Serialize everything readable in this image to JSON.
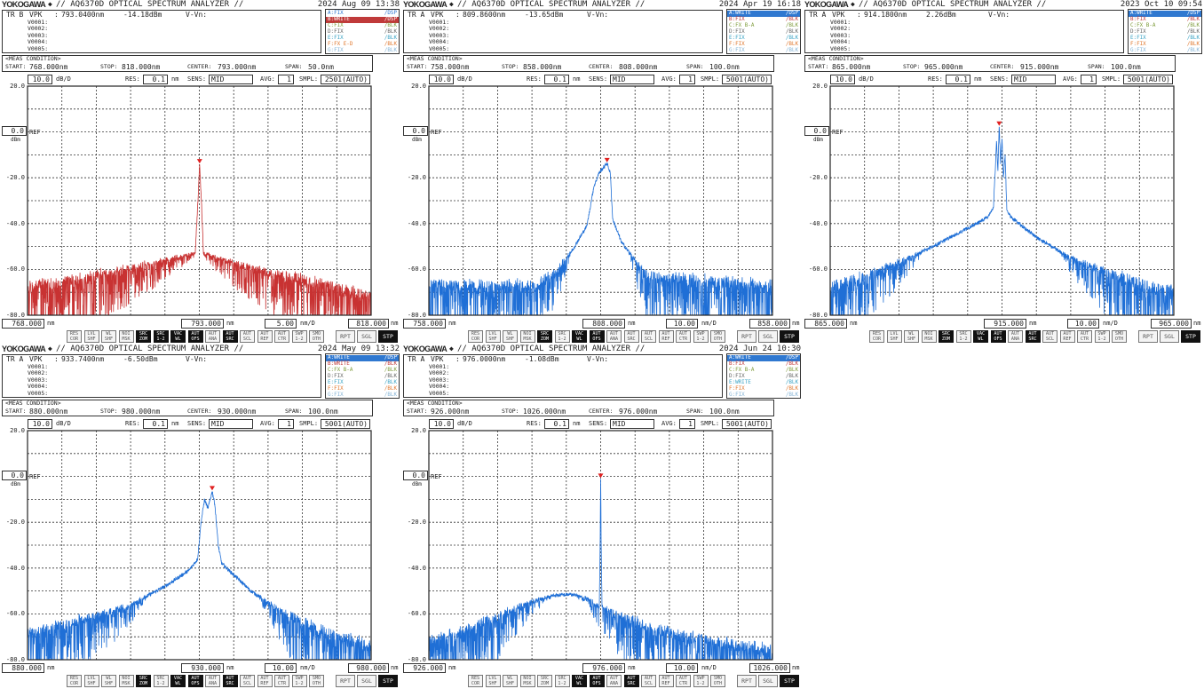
{
  "common": {
    "brand": "YOKOGAWA",
    "brand_symbol": "◆",
    "title": "// AQ6370D OPTICAL SPECTRUM ANALYZER //",
    "marker_rows": [
      "V0001:",
      "V0002:",
      "V0003:",
      "V0004:",
      "V0005:"
    ],
    "marker_label": "VPK",
    "delta_label": "V-Vn:",
    "meas_title": "<MEAS CONDITION>",
    "start_label": "START:",
    "stop_label": "STOP:",
    "center_label": "CENTER:",
    "span_label": "SPAN:",
    "scale_unit": "dB/D",
    "res_label": "RES:",
    "res_unit": "nm",
    "sens_label": "SENS:",
    "avg_label": "AVG:",
    "smpl_label": "SMPL:",
    "ref_label": "REF",
    "ref_value": "0.0",
    "ref_unit": "dBm",
    "y_tick_labels": [
      "20.0",
      "-20.0",
      "-40.0",
      "-60.0",
      "-80.0"
    ],
    "nm_unit": "nm",
    "div_unit": "nm/D",
    "buttons": [
      [
        "RES",
        "COR"
      ],
      [
        "LVL",
        "SHF"
      ],
      [
        "WL",
        "SHF"
      ],
      [
        "NOI",
        "MSK"
      ],
      [
        "SRC",
        "ZOM"
      ],
      [
        "SRC",
        "1-2"
      ],
      [
        "VAC",
        "WL"
      ],
      [
        "AUT",
        "OFS"
      ],
      [
        "AUT",
        "ANA"
      ],
      [
        "AUT",
        "SRC"
      ],
      [
        "AUT",
        "SCL"
      ],
      [
        "AUT",
        "REF"
      ],
      [
        "AUT",
        "CTR"
      ],
      [
        "SWP",
        "1-2"
      ],
      [
        "SMO",
        "OTH"
      ]
    ],
    "mode_buttons": [
      "RPT",
      "SGL",
      "STP"
    ],
    "active_mode": "STP",
    "trace_colors": {
      "A": "#2f78d0",
      "B": "#c03a3a",
      "C": "#7f9c3c",
      "D": "#666666",
      "E": "#3aa3c4",
      "F": "#e0782e",
      "G": "#86b4d6"
    }
  },
  "panels": [
    {
      "date": "2024 Aug 09 13:38",
      "marker_trace": "TR B",
      "marker_wl": "793.0400nm",
      "marker_level": "-14.18dBm",
      "traces": [
        [
          "A",
          "A:FIX",
          "/DSP",
          false
        ],
        [
          "B",
          "B:WRITE",
          "/DSP",
          true
        ],
        [
          "C",
          "C:FIX",
          "/BLK",
          false
        ],
        [
          "D",
          "D:FIX",
          "/BLK",
          false
        ],
        [
          "E",
          "E:FIX",
          "/BLK",
          false
        ],
        [
          "F",
          "F:FX E-D",
          "/BLK",
          false
        ],
        [
          "G",
          "G:FIX",
          "/BLK",
          false
        ]
      ],
      "start": "768.000nm",
      "stop": "818.000nm",
      "center": "793.000nm",
      "span": "50.0nm",
      "scale": "10.0",
      "res": "0.1",
      "sens": "MID",
      "avg": "1",
      "smpl": "2501(AUTO)",
      "axis_start": "768.000",
      "axis_center": "793.000",
      "axis_div": "5.00",
      "axis_stop": "818.000",
      "active_buttons": [
        "SRC ZOM",
        "SRC 1-2",
        "VAC WL",
        "AUT OFS",
        "AUT SRC"
      ],
      "trace_color": "#c83232",
      "chart_data": {
        "type": "line",
        "xlim": [
          768,
          818
        ],
        "ylim": [
          -80,
          20
        ],
        "x_unit": "nm",
        "y_unit": "dBm",
        "grid": true,
        "peak": {
          "x": 793.04,
          "y": -14.18
        },
        "envelope": [
          [
            768,
            -68
          ],
          [
            776,
            -64
          ],
          [
            782,
            -60
          ],
          [
            788,
            -56
          ],
          [
            792.4,
            -53
          ],
          [
            792.8,
            -30
          ],
          [
            793.04,
            -14.18
          ],
          [
            793.3,
            -30
          ],
          [
            793.6,
            -53
          ],
          [
            798,
            -57
          ],
          [
            804,
            -62
          ],
          [
            810,
            -66
          ],
          [
            818,
            -72
          ]
        ]
      }
    },
    {
      "date": "2024 Apr 19 16:18",
      "marker_trace": "TR A",
      "marker_wl": "809.8600nm",
      "marker_level": "-13.65dBm",
      "traces": [
        [
          "A",
          "A:WRITE",
          "/DSP",
          true
        ],
        [
          "B",
          "B:FIX",
          "/BLK",
          false
        ],
        [
          "C",
          "C:FX B-A",
          "/BLK",
          false
        ],
        [
          "D",
          "D:FIX",
          "/BLK",
          false
        ],
        [
          "E",
          "E:FIX",
          "/BLK",
          false
        ],
        [
          "F",
          "F:FIX",
          "/BLK",
          false
        ],
        [
          "G",
          "G:FIX",
          "/BLK",
          false
        ]
      ],
      "start": "758.000nm",
      "stop": "858.000nm",
      "center": "808.000nm",
      "span": "100.0nm",
      "scale": "10.0",
      "res": "0.1",
      "sens": "MID",
      "avg": "1",
      "smpl": "5001(AUTO)",
      "axis_start": "758.000",
      "axis_center": "808.000",
      "axis_div": "10.00",
      "axis_stop": "858.000",
      "active_buttons": [
        "SRC ZOM",
        "VAC WL",
        "AUT OFS"
      ],
      "trace_color": "#1f6fd6",
      "chart_data": {
        "type": "line",
        "xlim": [
          758,
          858
        ],
        "ylim": [
          -80,
          20
        ],
        "x_unit": "nm",
        "y_unit": "dBm",
        "grid": true,
        "peak": {
          "x": 809.86,
          "y": -13.65
        },
        "envelope": [
          [
            758,
            -67
          ],
          [
            790,
            -67
          ],
          [
            795,
            -61
          ],
          [
            800,
            -51
          ],
          [
            804,
            -41
          ],
          [
            806,
            -24
          ],
          [
            807.5,
            -18
          ],
          [
            809.86,
            -13.65
          ],
          [
            810.8,
            -18
          ],
          [
            811.5,
            -38
          ],
          [
            814,
            -48
          ],
          [
            818,
            -56
          ],
          [
            822,
            -63
          ],
          [
            858,
            -67
          ]
        ]
      }
    },
    {
      "date": "2023 Oct 10 09:54",
      "marker_trace": "TR A",
      "marker_wl": "914.1800nm",
      "marker_level": "2.26dBm",
      "traces": [
        [
          "A",
          "A:WRITE",
          "/DSP",
          true
        ],
        [
          "B",
          "B:FIX",
          "/BLK",
          false
        ],
        [
          "C",
          "C:FX B-A",
          "/BLK",
          false
        ],
        [
          "D",
          "D:FIX",
          "/BLK",
          false
        ],
        [
          "E",
          "E:FIX",
          "/BLK",
          false
        ],
        [
          "F",
          "F:FIX",
          "/BLK",
          false
        ],
        [
          "G",
          "G:FIX",
          "/BLK",
          false
        ]
      ],
      "start": "865.000nm",
      "stop": "965.000nm",
      "center": "915.000nm",
      "span": "100.0nm",
      "scale": "10.0",
      "res": "0.1",
      "sens": "MID",
      "avg": "1",
      "smpl": "5001(AUTO)",
      "axis_start": "865.000",
      "axis_center": "915.000",
      "axis_div": "10.00",
      "axis_stop": "965.000",
      "active_buttons": [
        "SRC ZOM",
        "VAC WL",
        "AUT OFS",
        "AUT SRC"
      ],
      "trace_color": "#1f6fd6",
      "chart_data": {
        "type": "line",
        "xlim": [
          865,
          965
        ],
        "ylim": [
          -80,
          20
        ],
        "x_unit": "nm",
        "y_unit": "dBm",
        "grid": true,
        "peak": {
          "x": 914.18,
          "y": 2.26
        },
        "envelope": [
          [
            865,
            -68
          ],
          [
            875,
            -63
          ],
          [
            885,
            -57
          ],
          [
            895,
            -50
          ],
          [
            905,
            -42
          ],
          [
            911,
            -37
          ],
          [
            912.5,
            -33
          ],
          [
            913,
            -18
          ],
          [
            913.4,
            -4
          ],
          [
            913.8,
            -17
          ],
          [
            914.18,
            2.26
          ],
          [
            914.6,
            -14
          ],
          [
            915,
            -3
          ],
          [
            915.4,
            -20
          ],
          [
            915.9,
            -10
          ],
          [
            916.4,
            -34
          ],
          [
            917.5,
            -37
          ],
          [
            925,
            -46
          ],
          [
            935,
            -55
          ],
          [
            945,
            -61
          ],
          [
            955,
            -66
          ],
          [
            965,
            -70
          ]
        ]
      }
    },
    {
      "date": "2024 May 09 13:32",
      "marker_trace": "TR A",
      "marker_wl": "933.7400nm",
      "marker_level": "-6.50dBm",
      "traces": [
        [
          "A",
          "A:WRITE",
          "/DSP",
          true
        ],
        [
          "B",
          "B:WRITE",
          "/BLK",
          false
        ],
        [
          "C",
          "C:FX B-A",
          "/BLK",
          false
        ],
        [
          "D",
          "D:FIX",
          "/BLK",
          false
        ],
        [
          "E",
          "E:FIX",
          "/BLK",
          false
        ],
        [
          "F",
          "F:FIX",
          "/BLK",
          false
        ],
        [
          "G",
          "G:FIX",
          "/BLK",
          false
        ]
      ],
      "start": "880.000nm",
      "stop": "980.000nm",
      "center": "930.000nm",
      "span": "100.0nm",
      "scale": "10.0",
      "res": "0.1",
      "sens": "MID",
      "avg": "1",
      "smpl": "5001(AUTO)",
      "axis_start": "880.000",
      "axis_center": "930.000",
      "axis_div": "10.00",
      "axis_stop": "980.000",
      "active_buttons": [
        "SRC ZOM",
        "VAC WL",
        "AUT OFS",
        "AUT SRC"
      ],
      "trace_color": "#1f6fd6",
      "chart_data": {
        "type": "line",
        "xlim": [
          880,
          980
        ],
        "ylim": [
          -80,
          20
        ],
        "x_unit": "nm",
        "y_unit": "dBm",
        "grid": true,
        "peak": {
          "x": 933.74,
          "y": -6.5
        },
        "envelope": [
          [
            880,
            -69
          ],
          [
            890,
            -65
          ],
          [
            900,
            -61
          ],
          [
            910,
            -56
          ],
          [
            920,
            -48
          ],
          [
            927,
            -41
          ],
          [
            929.5,
            -36
          ],
          [
            930.5,
            -20
          ],
          [
            931.5,
            -10
          ],
          [
            932.5,
            -14
          ],
          [
            933.74,
            -6.5
          ],
          [
            934.5,
            -12
          ],
          [
            935.5,
            -30
          ],
          [
            936.5,
            -38
          ],
          [
            945,
            -50
          ],
          [
            955,
            -60
          ],
          [
            965,
            -67
          ],
          [
            980,
            -74
          ]
        ]
      }
    },
    {
      "date": "2024 Jun 24 10:30",
      "marker_trace": "TR A",
      "marker_wl": "976.0000nm",
      "marker_level": "-1.08dBm",
      "traces": [
        [
          "A",
          "A:WRITE",
          "/DSP",
          true
        ],
        [
          "B",
          "B:FIX",
          "/BLK",
          false
        ],
        [
          "C",
          "C:FX B-A",
          "/BLK",
          false
        ],
        [
          "D",
          "D:FIX",
          "/BLK",
          false
        ],
        [
          "E",
          "E:WRITE",
          "/BLK",
          false
        ],
        [
          "F",
          "F:FIX",
          "/BLK",
          false
        ],
        [
          "G",
          "G:FIX",
          "/BLK",
          false
        ]
      ],
      "start": "926.000nm",
      "stop": "1026.000nm",
      "center": "976.000nm",
      "span": "100.0nm",
      "scale": "10.0",
      "res": "0.1",
      "sens": "MID",
      "avg": "1",
      "smpl": "5001(AUTO)",
      "axis_start": "926.000",
      "axis_center": "976.000",
      "axis_div": "10.00",
      "axis_stop": "1026.000",
      "active_buttons": [
        "VAC WL",
        "AUT OFS",
        "AUT SRC"
      ],
      "trace_color": "#1f6fd6",
      "chart_data": {
        "type": "line",
        "xlim": [
          926,
          1026
        ],
        "ylim": [
          -80,
          20
        ],
        "x_unit": "nm",
        "y_unit": "dBm",
        "grid": true,
        "peak": {
          "x": 976.0,
          "y": -1.08
        },
        "envelope": [
          [
            926,
            -72
          ],
          [
            935,
            -68
          ],
          [
            945,
            -62
          ],
          [
            955,
            -55
          ],
          [
            962,
            -52
          ],
          [
            967,
            -51.5
          ],
          [
            972,
            -53
          ],
          [
            975.6,
            -57
          ],
          [
            975.85,
            -30
          ],
          [
            976.0,
            -1.08
          ],
          [
            976.15,
            -30
          ],
          [
            976.4,
            -57
          ],
          [
            985,
            -63
          ],
          [
            995,
            -68
          ],
          [
            1005,
            -71
          ],
          [
            1026,
            -76
          ]
        ]
      }
    }
  ]
}
